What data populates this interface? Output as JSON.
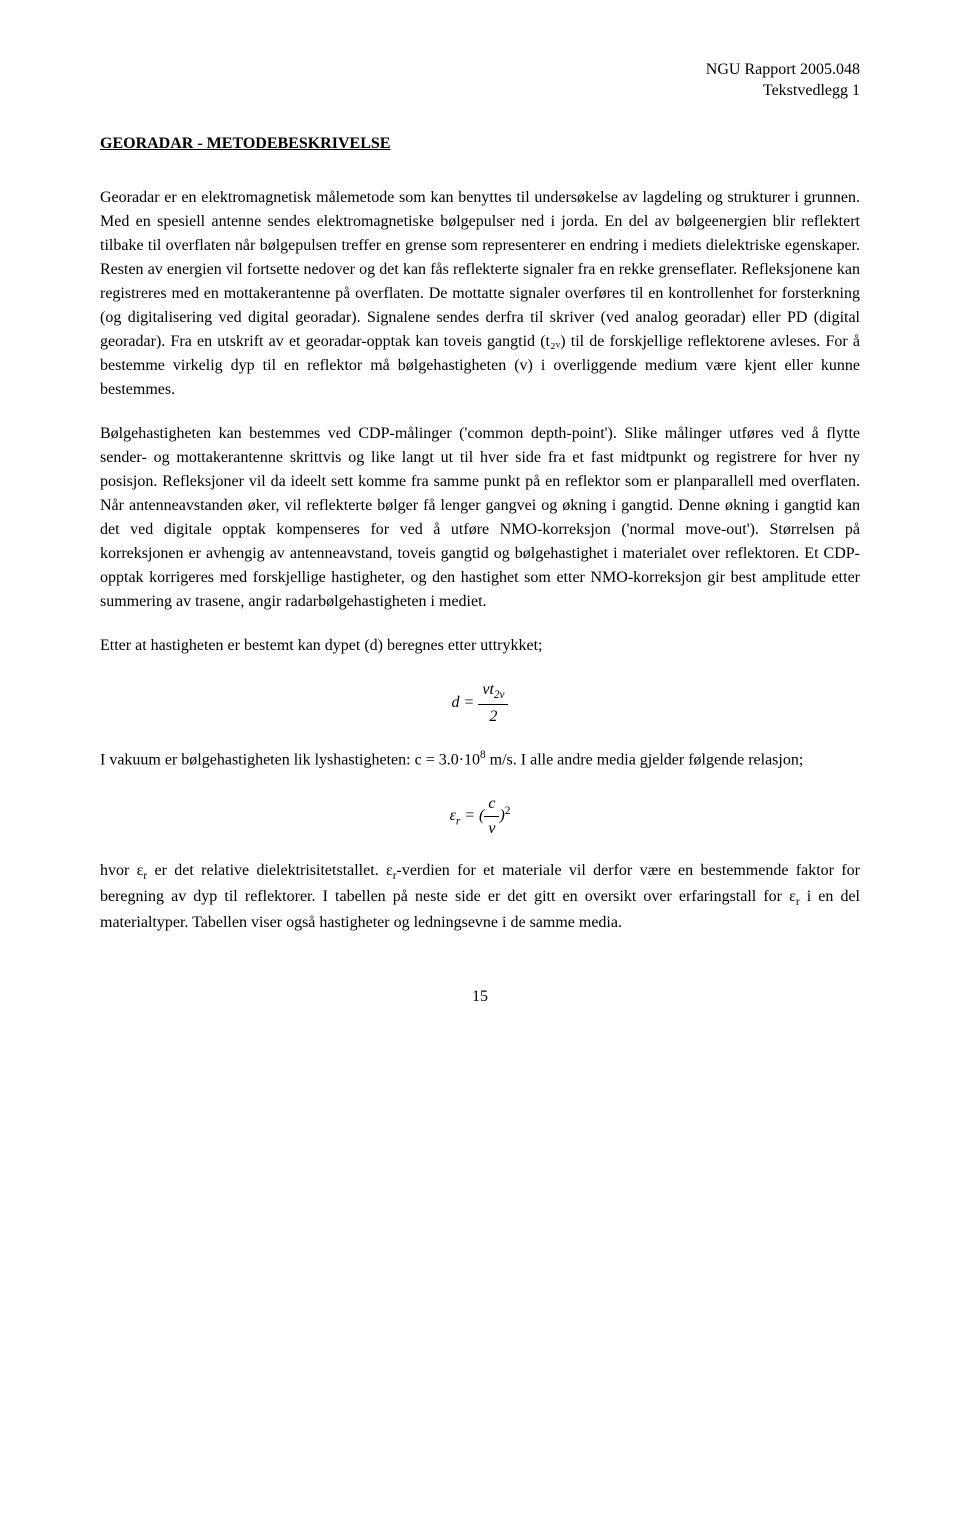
{
  "header": {
    "report": "NGU Rapport 2005.048",
    "attachment": "Tekstvedlegg 1"
  },
  "title": "GEORADAR - METODEBESKRIVELSE",
  "paragraphs": {
    "p1": "Georadar er en elektromagnetisk målemetode som kan benyttes til undersøkelse av lagdeling og strukturer i grunnen. Med en spesiell antenne sendes elektromagnetiske bølgepulser ned i jorda. En del av bølgeenergien blir reflektert tilbake til overflaten når bølgepulsen treffer en grense som representerer en endring i mediets dielektriske egenskaper. Resten av energien vil fortsette nedover og det kan fås reflekterte signaler fra en rekke grenseflater. Refleksjonene kan registreres med en mottakerantenne på overflaten. De mottatte signaler overføres til en kontrollenhet for forsterkning (og digitalisering ved digital georadar). Signalene sendes derfra til skriver (ved analog georadar) eller PD (digital georadar). Fra en utskrift av et georadar-opptak kan toveis gangtid (t₂ᵥ) til de forskjellige reflektorene avleses. For å bestemme virkelig dyp til en reflektor må bølgehastigheten (v) i overliggende medium være kjent eller kunne bestemmes.",
    "p2": "Bølgehastigheten kan bestemmes ved CDP-målinger ('common depth-point'). Slike målinger utføres ved å flytte sender- og mottakerantenne skrittvis og like langt ut til hver side fra et fast midtpunkt og registrere for hver ny posisjon. Refleksjoner vil da ideelt sett komme fra samme punkt på en reflektor som er planparallell med overflaten. Når antenneavstanden øker, vil reflekterte bølger få lenger gangvei og økning i gangtid. Denne økning i gangtid kan det ved digitale opptak kompenseres for ved å utføre NMO-korreksjon ('normal move-out'). Størrelsen på korreksjonen er avhengig av antenneavstand, toveis gangtid og bølgehastighet i materialet over reflektoren. Et CDP-opptak korrigeres med forskjellige hastigheter, og den hastighet som etter NMO-korreksjon gir best amplitude etter summering av trasene, angir radarbølgehastigheten i mediet.",
    "p3": "Etter at hastigheten er bestemt kan dypet (d) beregnes etter uttrykket;",
    "p4_part1": "I vakuum er bølgehastigheten lik lyshastigheten: c = 3.0·10",
    "p4_exp": "8",
    "p4_part2": " m/s. I alle andre media gjelder følgende relasjon;",
    "p5_part1": "hvor ε",
    "p5_sub_r": "r",
    "p5_part2": " er det relative dielektrisitetstallet. ε",
    "p5_part3": "-verdien for et materiale vil derfor være en bestemmende faktor for beregning av dyp til reflektorer. I tabellen på neste side er det gitt en oversikt over erfaringstall for ε",
    "p5_part4": " i en del materialtyper. Tabellen viser også hastigheter og ledningsevne i de samme media."
  },
  "formulas": {
    "f1_lhs": "d =",
    "f1_num_a": "vt",
    "f1_num_sub": "2v",
    "f1_den": "2",
    "f2_lhs_sym": "ε",
    "f2_lhs_sub": "r",
    "f2_eq": " = (",
    "f2_num": "c",
    "f2_den": "v",
    "f2_close": ")",
    "f2_exp": "2"
  },
  "pageNumber": "15"
}
